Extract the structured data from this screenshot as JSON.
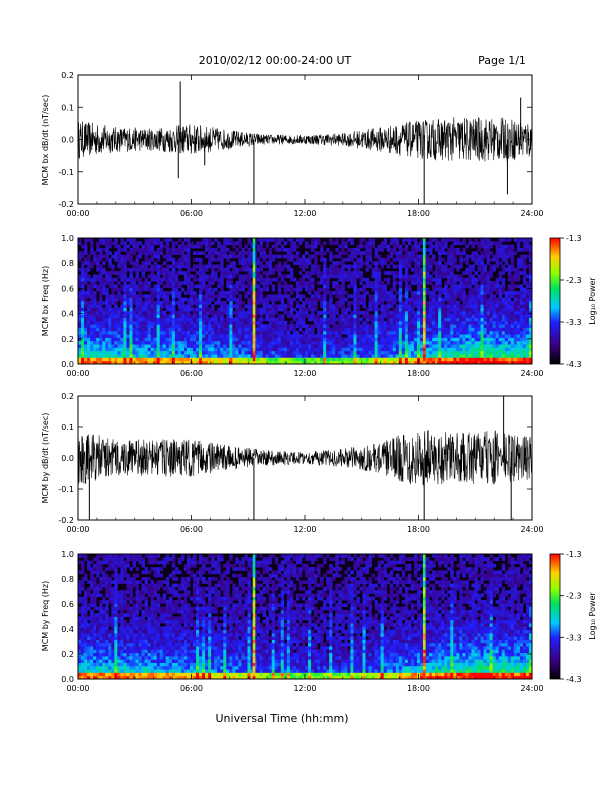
{
  "header": {
    "title": "2010/02/12  00:00-24:00 UT",
    "page": "Page 1/1"
  },
  "xlabel": "Universal Time (hh:mm)",
  "colorbar": {
    "label": "Log₁₀ Power",
    "ticks": [
      "-1.3",
      "-2.3",
      "-3.3",
      "-4.3"
    ],
    "range": [
      -4.3,
      -1.3
    ]
  },
  "chart_data": [
    {
      "type": "line",
      "ylabel": "MCM bx dB/dt (nT/sec)",
      "xlim": [
        0,
        24
      ],
      "ylim": [
        -0.2,
        0.2
      ],
      "x_ticks": [
        "00:00",
        "06:00",
        "12:00",
        "18:00",
        "24:00"
      ],
      "y_ticks": [
        "0.2",
        "0.1",
        "0.0",
        "-0.1",
        "-0.2"
      ],
      "envelope_hours": [
        0,
        2,
        4,
        6,
        8,
        10,
        12,
        14,
        16,
        18,
        20,
        22,
        24
      ],
      "envelope_amp": [
        0.06,
        0.04,
        0.035,
        0.05,
        0.03,
        0.015,
        0.015,
        0.02,
        0.04,
        0.06,
        0.07,
        0.07,
        0.06
      ],
      "spikes": [
        {
          "t": 5.4,
          "v": 0.18
        },
        {
          "t": 5.3,
          "v": -0.12
        },
        {
          "t": 6.7,
          "v": -0.08
        },
        {
          "t": 9.3,
          "v": -0.2
        },
        {
          "t": 18.3,
          "v": -0.2
        },
        {
          "t": 22.7,
          "v": -0.17
        },
        {
          "t": 23.4,
          "v": 0.13
        }
      ]
    },
    {
      "type": "heatmap",
      "ylabel": "MCM bx Freq (Hz)",
      "xlim": [
        0,
        24
      ],
      "ylim": [
        0,
        1.0
      ],
      "x_ticks": [
        "00:00",
        "06:00",
        "12:00",
        "18:00",
        "24:00"
      ],
      "y_ticks": [
        "1.0",
        "0.8",
        "0.6",
        "0.4",
        "0.2",
        "0.0"
      ],
      "event_hours": [
        9.3,
        18.3
      ]
    },
    {
      "type": "line",
      "ylabel": "MCM by dB/dt (nT/sec)",
      "xlim": [
        0,
        24
      ],
      "ylim": [
        -0.2,
        0.2
      ],
      "x_ticks": [
        "00:00",
        "06:00",
        "12:00",
        "18:00",
        "24:00"
      ],
      "y_ticks": [
        "0.2",
        "0.1",
        "0.0",
        "-0.1",
        "-0.2"
      ],
      "envelope_hours": [
        0,
        2,
        4,
        6,
        8,
        10,
        12,
        14,
        16,
        18,
        20,
        22,
        24
      ],
      "envelope_amp": [
        0.09,
        0.06,
        0.06,
        0.06,
        0.04,
        0.025,
        0.02,
        0.03,
        0.05,
        0.1,
        0.08,
        0.09,
        0.07
      ],
      "spikes": [
        {
          "t": 0.6,
          "v": -0.2
        },
        {
          "t": 9.3,
          "v": -0.2
        },
        {
          "t": 18.3,
          "v": -0.2
        },
        {
          "t": 22.5,
          "v": 0.2
        },
        {
          "t": 22.9,
          "v": -0.2
        }
      ]
    },
    {
      "type": "heatmap",
      "ylabel": "MCM by Freq (Hz)",
      "xlim": [
        0,
        24
      ],
      "ylim": [
        0,
        1.0
      ],
      "x_ticks": [
        "00:00",
        "06:00",
        "12:00",
        "18:00",
        "24:00"
      ],
      "y_ticks": [
        "1.0",
        "0.8",
        "0.6",
        "0.4",
        "0.2",
        "0.0"
      ],
      "event_hours": [
        9.3,
        18.3
      ]
    }
  ]
}
